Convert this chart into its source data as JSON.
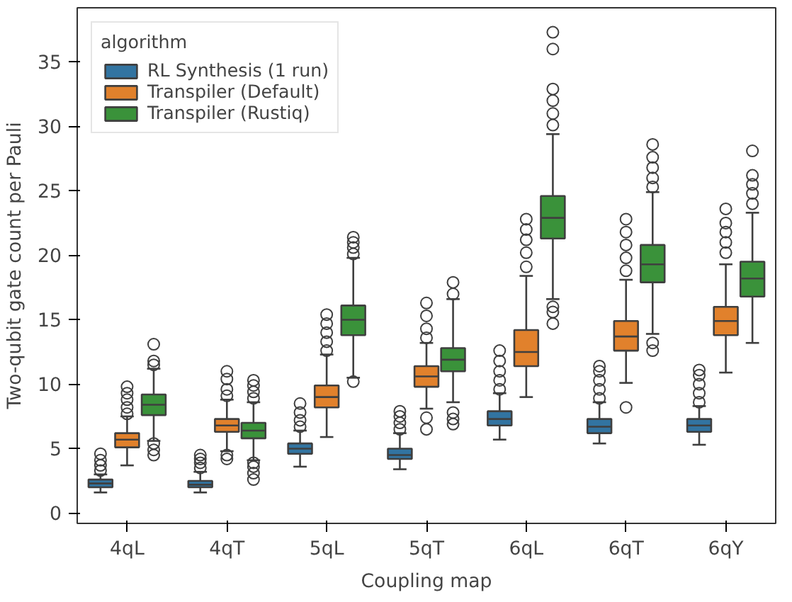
{
  "chart_data": {
    "type": "box",
    "xlabel": "Coupling map",
    "ylabel": "Two-qubit gate count per Pauli",
    "legend_title": "algorithm",
    "legend": "top left",
    "grid": false,
    "categories": [
      "4qL",
      "4qT",
      "5qL",
      "5qT",
      "6qL",
      "6qT",
      "6qY"
    ],
    "ylim": [
      -0.8,
      39.2
    ],
    "yticks": [
      0,
      5,
      10,
      15,
      20,
      25,
      30,
      35
    ],
    "series": [
      {
        "name": "RL Synthesis (1 run)",
        "color": "#3274a1",
        "boxes": [
          {
            "low": 1.6,
            "q1": 2.0,
            "median": 2.3,
            "q3": 2.6,
            "high": 3.0,
            "outliers": [
              3.3,
              3.7,
              4.1,
              4.6
            ]
          },
          {
            "low": 1.6,
            "q1": 2.0,
            "median": 2.2,
            "q3": 2.5,
            "high": 3.2,
            "outliers": [
              3.5,
              3.9,
              4.2,
              4.5
            ]
          },
          {
            "low": 3.6,
            "q1": 4.6,
            "median": 5.0,
            "q3": 5.4,
            "high": 6.4,
            "outliers": [
              6.7,
              7.2,
              7.8,
              8.5
            ]
          },
          {
            "low": 3.4,
            "q1": 4.2,
            "median": 4.5,
            "q3": 5.0,
            "high": 6.2,
            "outliers": [
              6.5,
              7.0,
              7.5,
              7.9
            ]
          },
          {
            "low": 5.7,
            "q1": 6.8,
            "median": 7.3,
            "q3": 7.9,
            "high": 9.3,
            "outliers": [
              9.6,
              10.3,
              11.0,
              11.8,
              12.6
            ]
          },
          {
            "low": 5.4,
            "q1": 6.2,
            "median": 6.7,
            "q3": 7.3,
            "high": 8.6,
            "outliers": [
              8.9,
              9.6,
              10.3,
              11.0,
              11.4
            ]
          },
          {
            "low": 5.3,
            "q1": 6.3,
            "median": 6.8,
            "q3": 7.3,
            "high": 8.3,
            "outliers": [
              8.6,
              9.3,
              10.0,
              10.7,
              11.1
            ]
          }
        ]
      },
      {
        "name": "Transpiler (Default)",
        "color": "#e1812c",
        "boxes": [
          {
            "low": 3.7,
            "q1": 5.1,
            "median": 5.7,
            "q3": 6.2,
            "high": 7.5,
            "outliers": [
              7.7,
              8.2,
              8.8,
              9.3,
              9.8
            ]
          },
          {
            "low": 4.8,
            "q1": 6.3,
            "median": 6.8,
            "q3": 7.3,
            "high": 8.8,
            "outliers": [
              4.2,
              4.5,
              9.1,
              9.6,
              10.4,
              11.0
            ]
          },
          {
            "low": 5.9,
            "q1": 8.2,
            "median": 9.0,
            "q3": 9.9,
            "high": 12.3,
            "outliers": [
              12.6,
              13.3,
              14.0,
              14.7,
              15.4
            ]
          },
          {
            "low": 8.1,
            "q1": 9.8,
            "median": 10.6,
            "q3": 11.4,
            "high": 13.2,
            "outliers": [
              6.5,
              7.4,
              13.6,
              14.3,
              15.3,
              16.3
            ]
          },
          {
            "low": 9.0,
            "q1": 11.4,
            "median": 12.5,
            "q3": 14.2,
            "high": 18.4,
            "outliers": [
              19.1,
              20.2,
              21.2,
              22.0,
              22.8
            ]
          },
          {
            "low": 10.1,
            "q1": 12.6,
            "median": 13.7,
            "q3": 14.9,
            "high": 18.1,
            "outliers": [
              8.2,
              18.8,
              19.8,
              20.8,
              21.8,
              22.8
            ]
          },
          {
            "low": 10.9,
            "q1": 13.8,
            "median": 14.9,
            "q3": 16.0,
            "high": 19.3,
            "outliers": [
              20.2,
              21.0,
              21.8,
              22.5,
              23.6
            ]
          }
        ]
      },
      {
        "name": "Transpiler (Rustiq)",
        "color": "#3a923a",
        "boxes": [
          {
            "low": 5.6,
            "q1": 7.6,
            "median": 8.4,
            "q3": 9.2,
            "high": 11.2,
            "outliers": [
              4.5,
              4.9,
              5.4,
              11.5,
              11.8,
              13.1
            ]
          },
          {
            "low": 4.1,
            "q1": 5.8,
            "median": 6.4,
            "q3": 7.0,
            "high": 8.6,
            "outliers": [
              2.6,
              3.1,
              3.6,
              3.9,
              8.9,
              9.4,
              9.9,
              10.3
            ]
          },
          {
            "low": 10.5,
            "q1": 13.8,
            "median": 15.0,
            "q3": 16.1,
            "high": 19.8,
            "outliers": [
              10.2,
              20.1,
              20.6,
              21.0,
              21.4
            ]
          },
          {
            "low": 8.6,
            "q1": 11.0,
            "median": 11.9,
            "q3": 12.8,
            "high": 16.6,
            "outliers": [
              6.9,
              7.3,
              7.8,
              17.0,
              17.9
            ]
          },
          {
            "low": 16.6,
            "q1": 21.3,
            "median": 22.9,
            "q3": 24.6,
            "high": 29.4,
            "outliers": [
              14.7,
              15.6,
              16.0,
              30.1,
              31.0,
              32.0,
              32.9,
              36.0,
              37.3
            ]
          },
          {
            "low": 13.9,
            "q1": 17.9,
            "median": 19.3,
            "q3": 20.8,
            "high": 24.9,
            "outliers": [
              12.6,
              13.2,
              25.3,
              26.0,
              26.8,
              27.6,
              28.6
            ]
          },
          {
            "low": 13.2,
            "q1": 16.8,
            "median": 18.2,
            "q3": 19.5,
            "high": 23.3,
            "outliers": [
              24.0,
              24.8,
              25.5,
              26.2,
              28.1
            ]
          }
        ]
      }
    ]
  }
}
